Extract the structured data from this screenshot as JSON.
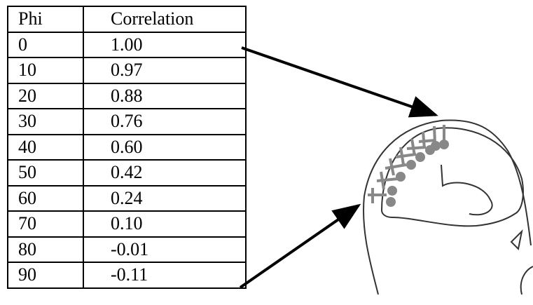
{
  "table": {
    "header": [
      "Phi",
      "Correlation"
    ],
    "rows": [
      [
        "0",
        "1.00"
      ],
      [
        "10",
        "0.97"
      ],
      [
        "20",
        "0.88"
      ],
      [
        "30",
        "0.76"
      ],
      [
        "40",
        "0.60"
      ],
      [
        "50",
        "0.42"
      ],
      [
        "60",
        "0.24"
      ],
      [
        "70",
        "0.10"
      ],
      [
        "80",
        "-0.01"
      ],
      [
        "90",
        "-0.11"
      ]
    ]
  }
}
